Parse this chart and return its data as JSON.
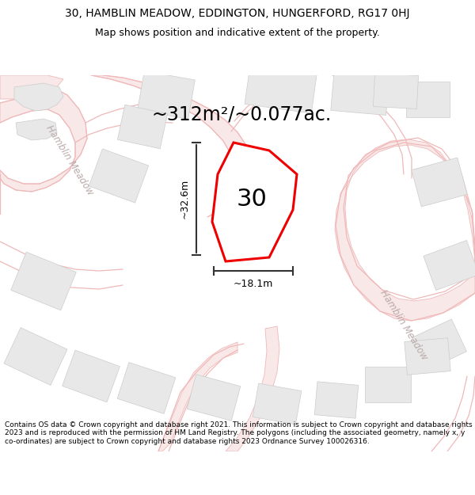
{
  "title_line1": "30, HAMBLIN MEADOW, EDDINGTON, HUNGERFORD, RG17 0HJ",
  "title_line2": "Map shows position and indicative extent of the property.",
  "area_text": "~312m²/~0.077ac.",
  "width_text": "~18.1m",
  "height_text": "~32.6m",
  "plot_number": "30",
  "footer_text": "Contains OS data © Crown copyright and database right 2021. This information is subject to Crown copyright and database rights 2023 and is reproduced with the permission of HM Land Registry. The polygons (including the associated geometry, namely x, y co-ordinates) are subject to Crown copyright and database rights 2023 Ordnance Survey 100026316.",
  "bg_color": "#ffffff",
  "map_bg": "#ffffff",
  "road_color": "#f0b8b8",
  "road_fill": "#f8e8e8",
  "building_color": "#e8e8e8",
  "building_edge": "#cccccc",
  "plot_edge_color": "#ee0000",
  "plot_fill": "#ffffff",
  "dim_line_color": "#333333",
  "road_label_color": "#bbaaaa",
  "title_fontsize": 10,
  "subtitle_fontsize": 9,
  "area_fontsize": 17,
  "plot_num_fontsize": 22,
  "dim_fontsize": 9,
  "road_label_fontsize": 8.5
}
